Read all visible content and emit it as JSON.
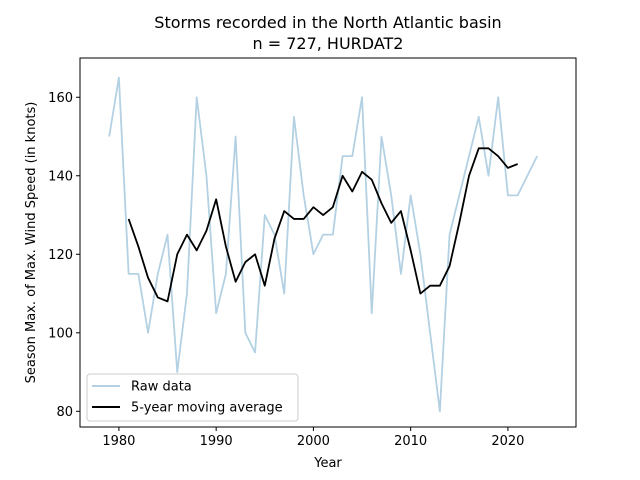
{
  "chart_data": {
    "type": "line",
    "title": "Storms recorded in the North Atlantic basin",
    "subtitle": "n = 727, HURDAT2",
    "xlabel": "Year",
    "ylabel": "Season Max. of Max. Wind Speed (in knots)",
    "xlim": [
      1976,
      2027
    ],
    "ylim": [
      76,
      170
    ],
    "xticks": [
      1980,
      1990,
      2000,
      2010,
      2020
    ],
    "yticks": [
      80,
      100,
      120,
      140,
      160
    ],
    "grid": false,
    "legend_position": "lower-left",
    "series": [
      {
        "name": "Raw data",
        "color": "#b3d1e3",
        "x": [
          1979,
          1980,
          1981,
          1982,
          1983,
          1984,
          1985,
          1986,
          1987,
          1988,
          1989,
          1990,
          1991,
          1992,
          1993,
          1994,
          1995,
          1996,
          1997,
          1998,
          1999,
          2000,
          2001,
          2002,
          2003,
          2004,
          2005,
          2006,
          2007,
          2008,
          2009,
          2010,
          2011,
          2012,
          2013,
          2014,
          2015,
          2016,
          2017,
          2018,
          2019,
          2020,
          2021,
          2022,
          2023
        ],
        "y": [
          150,
          165,
          115,
          115,
          100,
          115,
          125,
          90,
          110,
          160,
          140,
          105,
          115,
          150,
          100,
          95,
          130,
          125,
          110,
          155,
          135,
          120,
          125,
          125,
          145,
          145,
          160,
          105,
          150,
          135,
          115,
          135,
          120,
          100,
          80,
          125,
          135,
          145,
          155,
          140,
          160,
          135,
          135,
          140,
          145
        ]
      },
      {
        "name": "5-year moving average",
        "color": "#000000",
        "x": [
          1981,
          1982,
          1983,
          1984,
          1985,
          1986,
          1987,
          1988,
          1989,
          1990,
          1991,
          1992,
          1993,
          1994,
          1995,
          1996,
          1997,
          1998,
          1999,
          2000,
          2001,
          2002,
          2003,
          2004,
          2005,
          2006,
          2007,
          2008,
          2009,
          2010,
          2011,
          2012,
          2013,
          2014,
          2015,
          2016,
          2017,
          2018,
          2019,
          2020,
          2021
        ],
        "y": [
          129,
          122,
          114,
          109,
          108,
          120,
          125,
          121,
          126,
          134,
          122,
          113,
          118,
          120,
          112,
          124,
          131,
          129,
          129,
          132,
          130,
          132,
          140,
          136,
          141,
          139,
          133,
          128,
          131,
          121,
          110,
          112,
          112,
          117,
          128,
          140,
          147,
          147,
          145,
          142,
          143
        ]
      }
    ]
  }
}
